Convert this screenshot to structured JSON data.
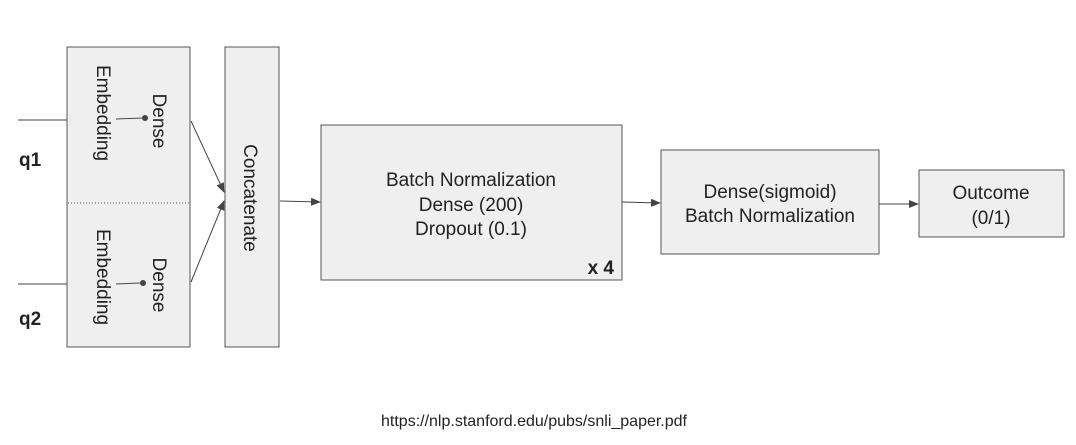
{
  "colors": {
    "box_fill": "#efefef",
    "box_stroke": "#555555",
    "line": "#444444"
  },
  "inputs": {
    "q1": "q1",
    "q2": "q2"
  },
  "branch_top": {
    "embedding": "Embedding",
    "dense": "Dense"
  },
  "branch_bottom": {
    "embedding": "Embedding",
    "dense": "Dense"
  },
  "concat": {
    "label": "Concatenate"
  },
  "block": {
    "line1": "Batch Normalization",
    "line2": "Dense (200)",
    "line3": "Dropout (0.1)",
    "repeat": "x 4"
  },
  "output_block": {
    "line1": "Dense(sigmoid)",
    "line2": "Batch Normalization"
  },
  "outcome": {
    "line1": "Outcome",
    "line2": "(0/1)"
  },
  "source": "https://nlp.stanford.edu/pubs/snli_paper.pdf"
}
